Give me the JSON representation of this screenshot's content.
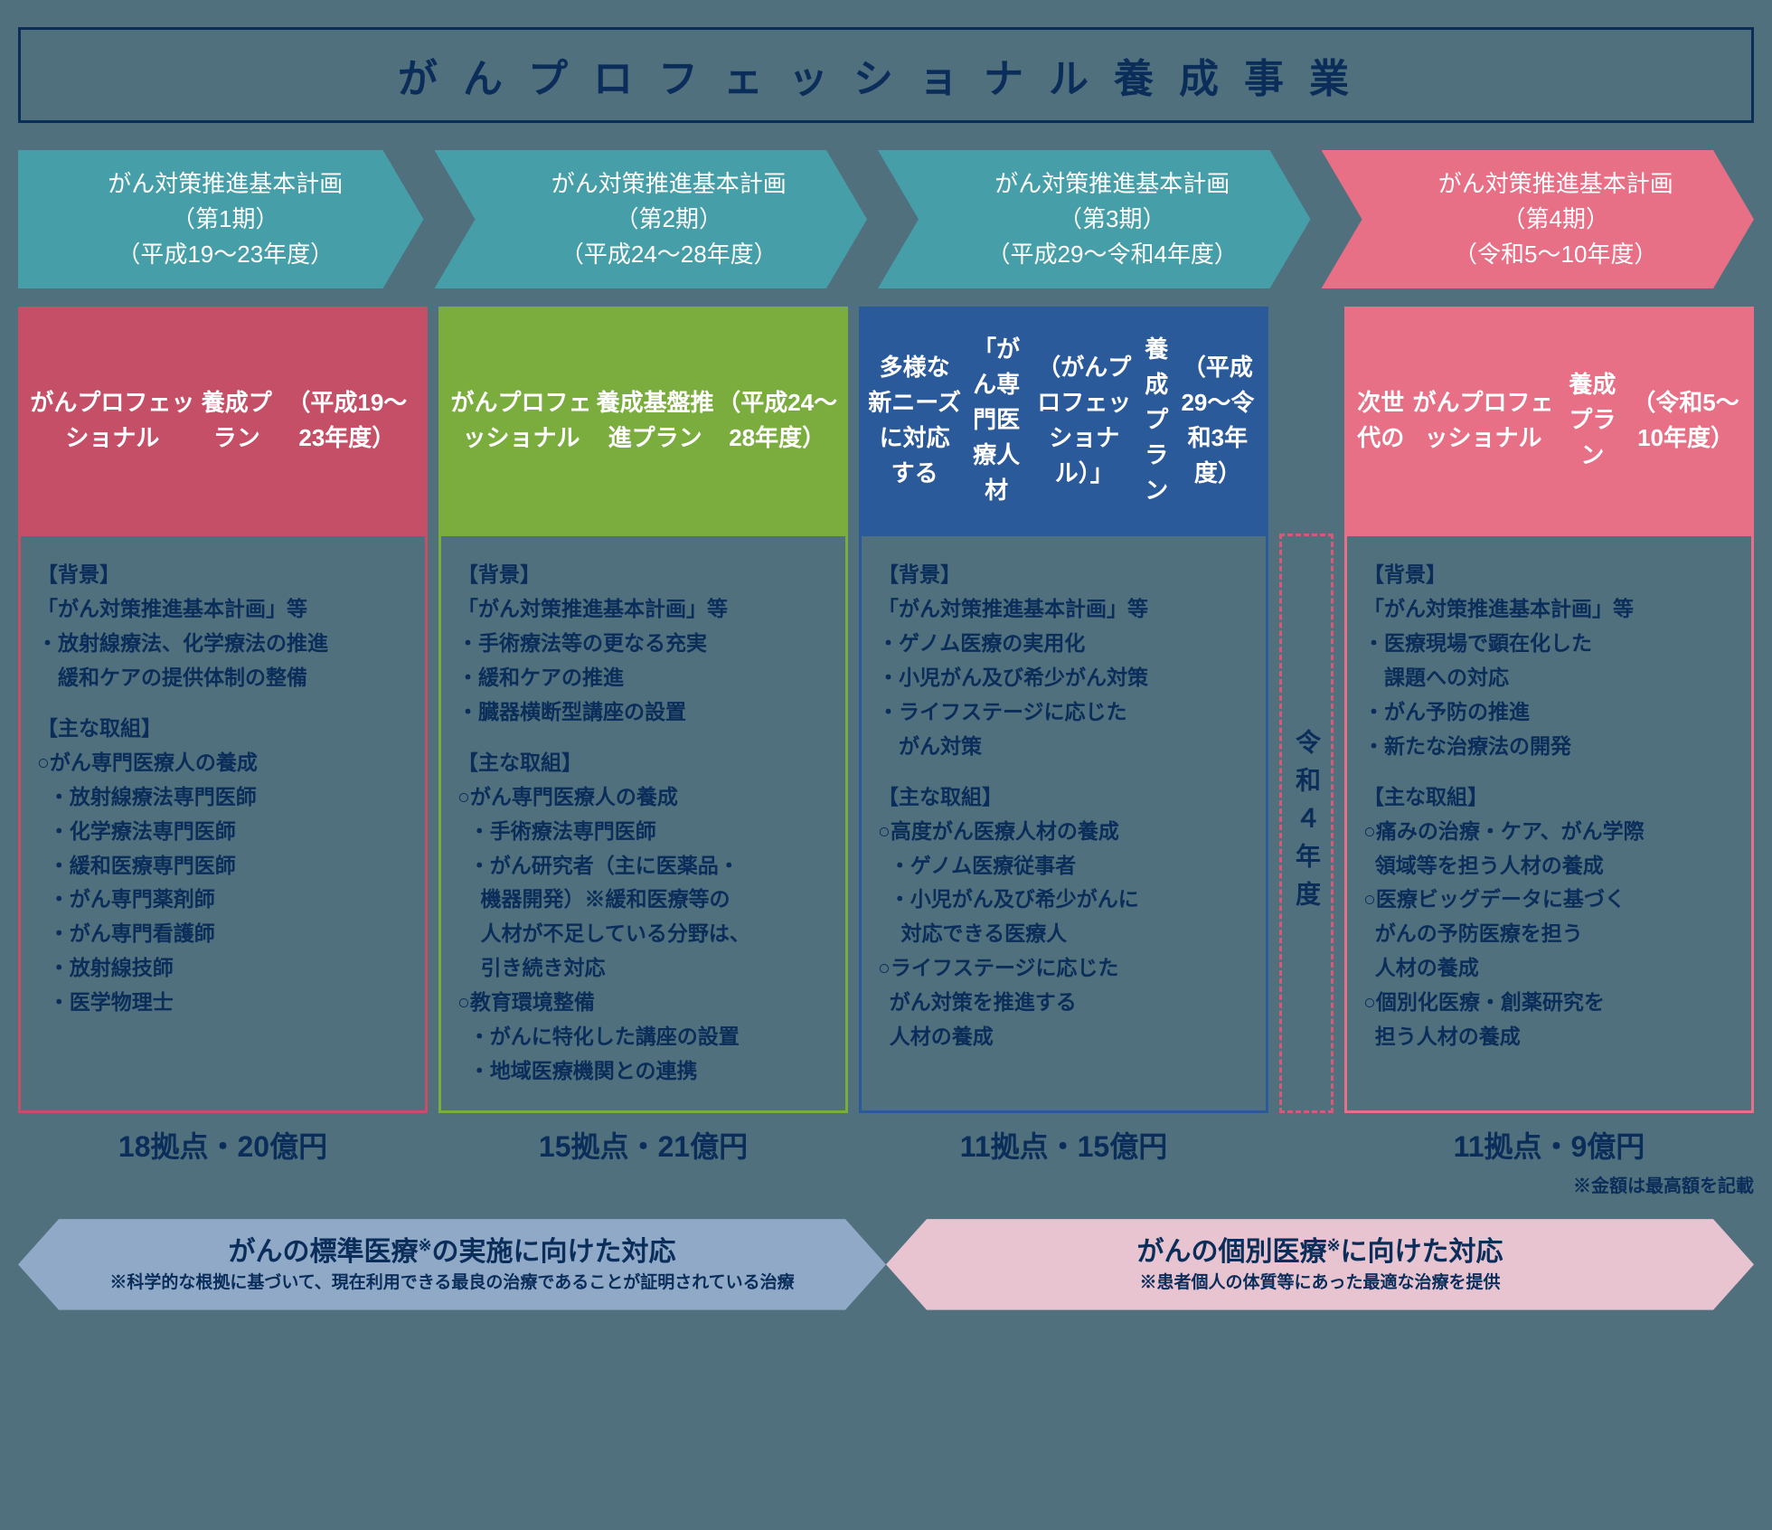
{
  "title": "がんプロフェッショナル養成事業",
  "colors": {
    "teal": "#469fa8",
    "pink": "#e76f86",
    "darkpink": "#c64f68",
    "green": "#7aad3e",
    "blue": "#2b5a9a",
    "navy": "#0a2d5a",
    "bottomBlue": "#8fa9c7",
    "bottomPink": "#e8c3d0"
  },
  "phases": [
    {
      "line1": "がん対策推進基本計画",
      "line2": "（第1期）",
      "line3": "（平成19～23年度）",
      "bg": "#469fa8"
    },
    {
      "line1": "がん対策推進基本計画",
      "line2": "（第2期）",
      "line3": "（平成24～28年度）",
      "bg": "#469fa8"
    },
    {
      "line1": "がん対策推進基本計画",
      "line2": "（第3期）",
      "line3": "（平成29～令和4年度）",
      "bg": "#469fa8"
    },
    {
      "line1": "がん対策推進基本計画",
      "line2": "（第4期）",
      "line3": "（令和5～10年度）",
      "bg": "#e76f86"
    }
  ],
  "plans": [
    {
      "text": "がんプロフェッショナル\n養成プラン\n（平成19～23年度）",
      "bg": "#c64f68",
      "border": "#c64f68"
    },
    {
      "text": "がんプロフェッショナル\n養成基盤推進プラン\n（平成24～28年度）",
      "bg": "#7aad3e",
      "border": "#7aad3e"
    },
    {
      "text": "多様な新ニーズに対応する\n「がん専門医療人材\n（がんプロフェッショナル）」\n養成プラン\n（平成29～令和3年度）",
      "bg": "#2b5a9a",
      "border": "#2b5a9a"
    },
    {
      "text": "次世代の\nがんプロフェッショナル\n養成プラン\n（令和5～10年度）",
      "bg": "#e76f86",
      "border": "#e76f86"
    }
  ],
  "gapLabel": "令和４年度",
  "details": [
    {
      "border": "#c64f68",
      "bg_heading": "【背景】",
      "bg_lines": [
        "「がん対策推進基本計画」等",
        "・放射線療法、化学療法の推進",
        "　緩和ケアの提供体制の整備"
      ],
      "act_heading": "【主な取組】",
      "act_lines": [
        "○がん専門医療人の養成",
        "　・放射線療法専門医師",
        "　・化学療法専門医師",
        "　・緩和医療専門医師",
        "　・がん専門薬剤師",
        "　・がん専門看護師",
        "　・放射線技師",
        "　・医学物理士"
      ]
    },
    {
      "border": "#7aad3e",
      "bg_heading": "【背景】",
      "bg_lines": [
        "「がん対策推進基本計画」等",
        "・手術療法等の更なる充実",
        "・緩和ケアの推進",
        "・臓器横断型講座の設置"
      ],
      "act_heading": "【主な取組】",
      "act_lines": [
        "○がん専門医療人の養成",
        "　・手術療法専門医師",
        "　・がん研究者（主に医薬品・",
        "　　機器開発）※緩和医療等の",
        "　　人材が不足している分野は、",
        "　　引き続き対応",
        "○教育環境整備",
        "　・がんに特化した講座の設置",
        "　・地域医療機関との連携"
      ]
    },
    {
      "border": "#2b5a9a",
      "bg_heading": "【背景】",
      "bg_lines": [
        "「がん対策推進基本計画」等",
        "・ゲノム医療の実用化",
        "・小児がん及び希少がん対策",
        "・ライフステージに応じた",
        "　がん対策"
      ],
      "act_heading": "【主な取組】",
      "act_lines": [
        "○高度がん医療人材の養成",
        "　・ゲノム医療従事者",
        "　・小児がん及び希少がんに",
        "　　対応できる医療人",
        "○ライフステージに応じた",
        "　がん対策を推進する",
        "　人材の養成"
      ]
    },
    {
      "border": "#e76f86",
      "bg_heading": "【背景】",
      "bg_lines": [
        "「がん対策推進基本計画」等",
        "・医療現場で顕在化した",
        "　課題への対応",
        "・がん予防の推進",
        "・新たな治療法の開発"
      ],
      "act_heading": "【主な取組】",
      "act_lines": [
        "○痛みの治療・ケア、がん学際",
        "　領域等を担う人材の養成",
        "○医療ビッグデータに基づく",
        "　がんの予防医療を担う",
        "　人材の養成",
        "○個別化医療・創薬研究を",
        "　担う人材の養成"
      ]
    }
  ],
  "stats": [
    "18拠点・20億円",
    "15拠点・21億円",
    "11拠点・15億円",
    "11拠点・9億円"
  ],
  "note": "※金額は最高額を記載",
  "bottom": [
    {
      "main": "がんの標準医療※の実施に向けた対応",
      "sub": "※科学的な根拠に基づいて、現在利用できる最良の治療であることが証明されている治療",
      "bg": "#8fa9c7"
    },
    {
      "main": "がんの個別医療※に向けた対応",
      "sub": "※患者個人の体質等にあった最適な治療を提供",
      "bg": "#e8c3d0"
    }
  ]
}
